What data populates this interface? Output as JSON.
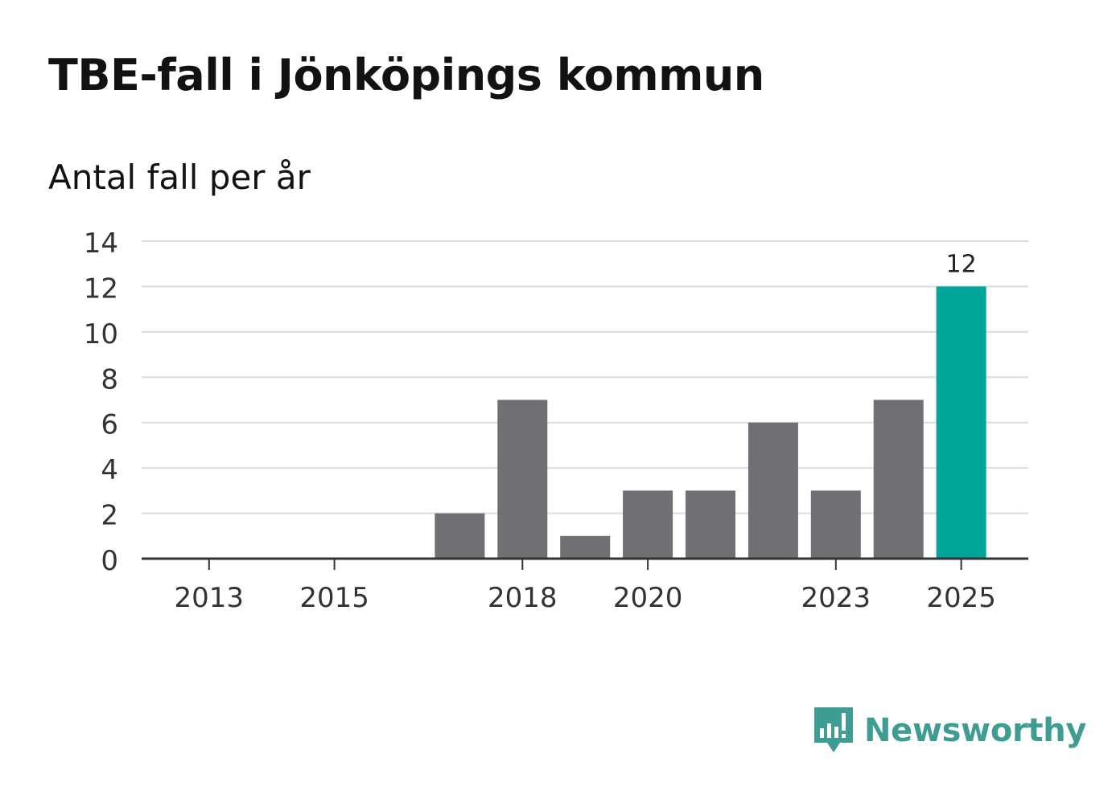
{
  "header": {
    "title": "TBE-fall i Jönköpings kommun",
    "subtitle": "Antal fall per år"
  },
  "brand": {
    "name": "Newsworthy",
    "color": "#3f9c92"
  },
  "colors": {
    "bar": "#706f74",
    "highlight": "#00a59a",
    "grid": "#dddddd",
    "axis": "#333333"
  },
  "chart_data": {
    "type": "bar",
    "title": "TBE-fall i Jönköpings kommun",
    "subtitle": "Antal fall per år",
    "xlabel": "",
    "ylabel": "",
    "categories": [
      "2013",
      "2014",
      "2015",
      "2016",
      "2017",
      "2018",
      "2019",
      "2020",
      "2021",
      "2022",
      "2023",
      "2024",
      "2025"
    ],
    "values": [
      0,
      0,
      0,
      0,
      2,
      7,
      1,
      3,
      3,
      6,
      3,
      7,
      12
    ],
    "highlight_index": 12,
    "data_labels": [
      {
        "index": 12,
        "text": "12"
      }
    ],
    "x_tick_labels": [
      "2013",
      "2015",
      "2018",
      "2020",
      "2023",
      "2025"
    ],
    "y_ticks": [
      0,
      2,
      4,
      6,
      8,
      10,
      12,
      14
    ],
    "ylim": [
      0,
      14
    ],
    "grid": true
  }
}
